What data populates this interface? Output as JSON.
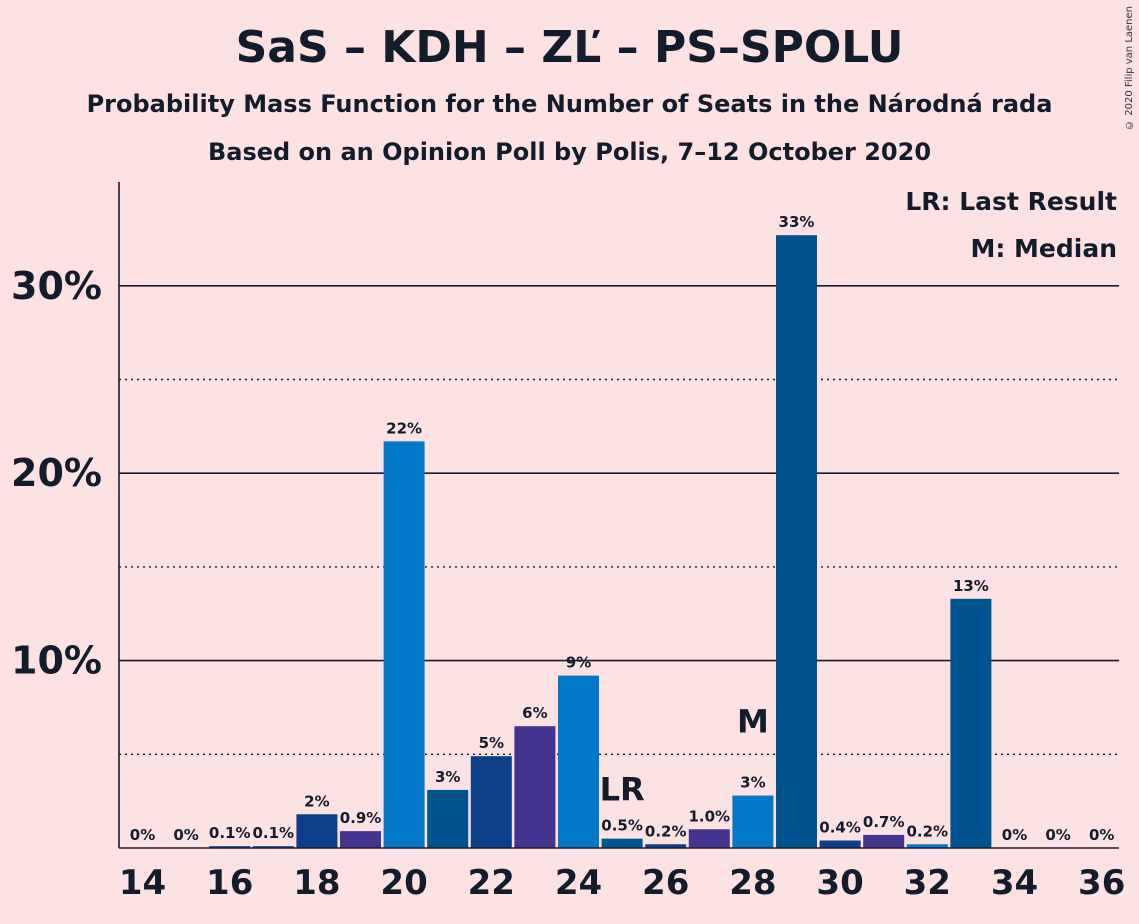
{
  "title": "SaS – KDH – ZĽ – PS–SPOLU",
  "subtitle_1": "Probability Mass Function for the Number of Seats in the Národná rada",
  "subtitle_2": "Based on an Opinion Poll by Polis, 7–12 October 2020",
  "copyright": "© 2020 Filip van Laenen",
  "legend": {
    "last_result": "LR: Last Result",
    "median": "M: Median"
  },
  "markers": {
    "last_result_label": "LR",
    "median_label": "M"
  },
  "chart_data": {
    "type": "bar",
    "x": [
      14,
      15,
      16,
      17,
      18,
      19,
      20,
      21,
      22,
      23,
      24,
      25,
      26,
      27,
      28,
      29,
      30,
      31,
      32,
      33,
      34,
      35,
      36
    ],
    "values": [
      0,
      0,
      0.1,
      0.1,
      1.8,
      0.9,
      21.7,
      3.1,
      4.9,
      6.5,
      9.2,
      0.5,
      0.2,
      1.0,
      2.8,
      32.7,
      0.4,
      0.7,
      0.2,
      13.3,
      0,
      0,
      0
    ],
    "value_labels": [
      "0%",
      "0%",
      "0.1%",
      "0.1%",
      "2%",
      "0.9%",
      "22%",
      "3%",
      "5%",
      "6%",
      "9%",
      "0.5%",
      "0.2%",
      "1.0%",
      "3%",
      "33%",
      "0.4%",
      "0.7%",
      "0.2%",
      "13%",
      "0%",
      "0%",
      "0%"
    ],
    "bar_colors": [
      "#0f4c8a",
      "#0f4c8a",
      "#0f4c8a",
      "#0f4c8a",
      "#0c3f8a",
      "#44338f",
      "#0478c8",
      "#00548e",
      "#0c3f8a",
      "#44338f",
      "#0478c8",
      "#00548e",
      "#0c3f8a",
      "#44338f",
      "#0478c8",
      "#00548e",
      "#0c3f8a",
      "#44338f",
      "#0478c8",
      "#00548e",
      "#0c3f8a",
      "#44338f",
      "#0478c8"
    ],
    "last_result_x": 25,
    "median_x": 28,
    "ylim": [
      0,
      35
    ],
    "yticks_major": [
      10,
      20,
      30
    ],
    "yticks_minor": [
      5,
      15,
      25
    ],
    "ytick_labels": [
      "10%",
      "20%",
      "30%"
    ],
    "xtick_values": [
      14,
      16,
      18,
      20,
      22,
      24,
      26,
      28,
      30,
      32,
      34,
      36
    ],
    "xtick_labels": [
      "14",
      "16",
      "18",
      "20",
      "22",
      "24",
      "26",
      "28",
      "30",
      "32",
      "34",
      "36"
    ],
    "xlabel": "",
    "ylabel": "",
    "legend_position": "top-right"
  }
}
